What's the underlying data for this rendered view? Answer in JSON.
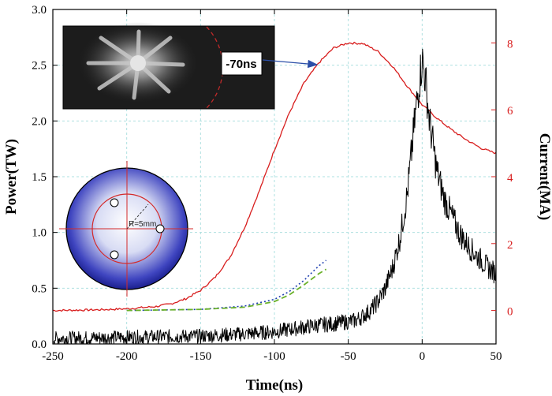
{
  "colors": {
    "power": "#000000",
    "current": "#d81e1e",
    "blue_dotted": "#1f3fb0",
    "green_dashed": "#6ab12a",
    "grid": "#aee0e0",
    "arrow": "#2b4fa8"
  },
  "chart_data": {
    "type": "line",
    "xlabel": "Time(ns)",
    "ylabel_left": "Power(TW)",
    "ylabel_right": "Current(MA)",
    "xlim": [
      -250,
      50
    ],
    "ylim_left": [
      0,
      3.0
    ],
    "ylim_right": [
      -1.0,
      9.0
    ],
    "x_ticks": [
      -250,
      -200,
      -150,
      -100,
      -50,
      0,
      50
    ],
    "y_left_ticks": [
      0.0,
      0.5,
      1.0,
      1.5,
      2.0,
      2.5,
      3.0
    ],
    "y_right_ticks": [
      0,
      2,
      4,
      6,
      8
    ],
    "grid": true,
    "series": [
      {
        "axis": "right",
        "style": "solid",
        "x": [
          -250,
          -220,
          -200,
          -180,
          -170,
          -160,
          -150,
          -140,
          -130,
          -120,
          -110,
          -100,
          -90,
          -80,
          -70,
          -60,
          -50,
          -40,
          -30,
          -20,
          -10,
          0,
          10,
          20,
          30,
          40,
          50
        ],
        "values": [
          0.0,
          0.02,
          0.05,
          0.12,
          0.2,
          0.35,
          0.6,
          1.0,
          1.6,
          2.5,
          3.6,
          4.8,
          5.9,
          6.8,
          7.4,
          7.85,
          8.0,
          7.98,
          7.75,
          7.3,
          6.7,
          6.15,
          5.75,
          5.4,
          5.1,
          4.85,
          4.7
        ]
      },
      {
        "axis": "left",
        "style": "solid",
        "noisy": true,
        "x": [
          -250,
          -200,
          -150,
          -120,
          -100,
          -90,
          -80,
          -70,
          -60,
          -50,
          -45,
          -40,
          -35,
          -30,
          -25,
          -20,
          -15,
          -10,
          -5,
          -2,
          0,
          2,
          5,
          10,
          15,
          20,
          25,
          30,
          35,
          40,
          45,
          50
        ],
        "values": [
          0.05,
          0.06,
          0.07,
          0.09,
          0.11,
          0.13,
          0.15,
          0.17,
          0.18,
          0.2,
          0.21,
          0.25,
          0.3,
          0.38,
          0.5,
          0.68,
          0.95,
          1.35,
          2.0,
          2.35,
          2.55,
          2.4,
          2.0,
          1.55,
          1.3,
          1.15,
          1.0,
          0.9,
          0.82,
          0.75,
          0.68,
          0.63
        ]
      },
      {
        "axis": "left",
        "style": "dotted",
        "x": [
          -200,
          -150,
          -120,
          -100,
          -90,
          -80,
          -70,
          -65
        ],
        "values": [
          0.3,
          0.31,
          0.34,
          0.4,
          0.47,
          0.57,
          0.7,
          0.75
        ]
      },
      {
        "axis": "left",
        "style": "dashed",
        "x": [
          -200,
          -150,
          -120,
          -100,
          -90,
          -80,
          -70,
          -65
        ],
        "values": [
          0.3,
          0.31,
          0.33,
          0.38,
          0.44,
          0.53,
          0.63,
          0.67
        ]
      }
    ]
  },
  "insets": {
    "photo_label": "-70ns",
    "target_label": "R=5mm"
  }
}
